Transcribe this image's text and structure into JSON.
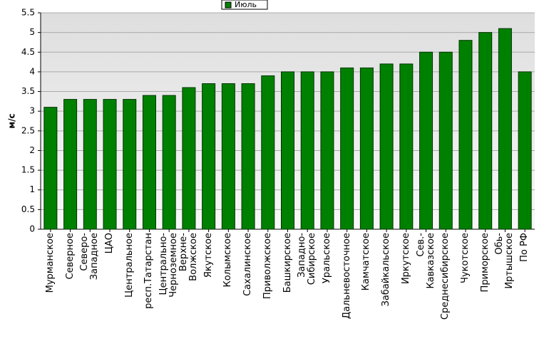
{
  "chart_data": {
    "type": "bar",
    "y_label": "м/с",
    "categories": [
      "Мурманское",
      "Северное",
      "Северо-\nЗападное",
      "ЦАО",
      "Центральное",
      "респ.Татарстан",
      "Центрально-\nЧерноземное",
      "Верхне-\nВолжское",
      "Якутское",
      "Колымское",
      "Сахалинское",
      "Приволжское",
      "Башкирское",
      "Западно-\nСибирское",
      "Уральское",
      "Дальневосточное",
      "Камчатское",
      "Забайкальское",
      "Иркутское",
      "Сев.-\nКавказское",
      "Среднесибирское",
      "Чукотское",
      "Приморское",
      "Обь-\nИртышское",
      "По РФ"
    ],
    "series": [
      {
        "name": "Июль",
        "color": "#008000",
        "values": [
          3.1,
          3.3,
          3.3,
          3.3,
          3.3,
          3.4,
          3.4,
          3.6,
          3.7,
          3.7,
          3.7,
          3.9,
          4.0,
          4.0,
          4.0,
          4.1,
          4.1,
          4.2,
          4.2,
          4.5,
          4.5,
          4.8,
          5.0,
          5.1,
          4.0
        ]
      }
    ],
    "ylim": [
      0,
      5.5
    ],
    "yticks": [
      0,
      0.5,
      1,
      1.5,
      2,
      2.5,
      3,
      3.5,
      4,
      4.5,
      5,
      5.5
    ],
    "grid": true,
    "legend": "top"
  }
}
